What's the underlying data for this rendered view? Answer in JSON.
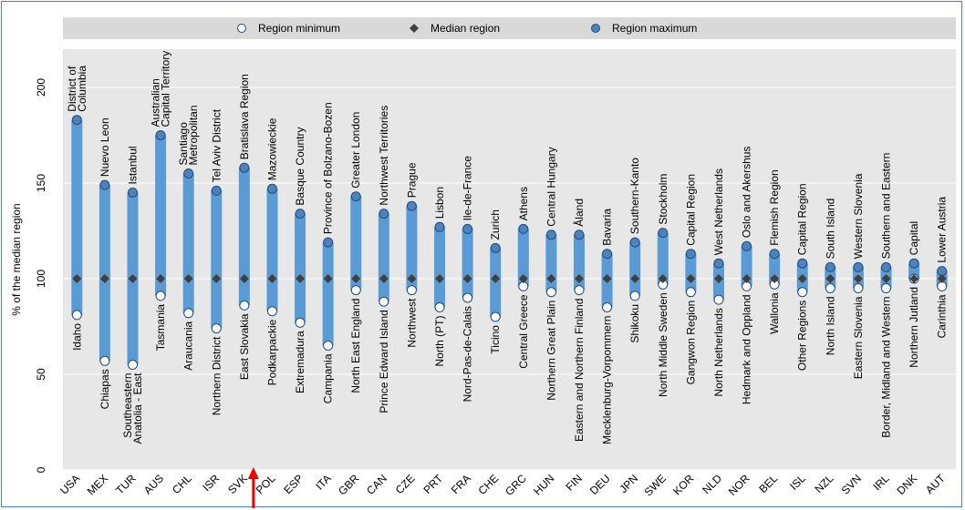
{
  "chart_data": {
    "type": "range",
    "ylabel": "% of the median region",
    "ylim": [
      0,
      220
    ],
    "yticks": [
      0,
      50,
      100,
      150,
      200
    ],
    "grid": true,
    "legend_position": "top",
    "legend": [
      {
        "key": "min",
        "label": "Region minimum",
        "marker": "open-circle"
      },
      {
        "key": "median",
        "label": "Median region",
        "marker": "diamond"
      },
      {
        "key": "max",
        "label": "Region maximum",
        "marker": "filled-circle"
      }
    ],
    "colors": {
      "bar": "#5b9bd5",
      "marker_fill": "#4f81bd",
      "marker_stroke": "#1f4e79",
      "median": "#404040",
      "plot_bg": "#e7e7e7",
      "legend_bg": "#d9d9d9",
      "grid": "#ffffff",
      "arrow": "#ee0000",
      "frame": "#4f81bd"
    },
    "arrow_category": "SVK",
    "categories": [
      {
        "code": "USA",
        "min": 81,
        "median": 100,
        "max": 183,
        "min_label": "Idaho",
        "max_label": "District of\nColumbia"
      },
      {
        "code": "MEX",
        "min": 57,
        "median": 100,
        "max": 149,
        "min_label": "Chiapas",
        "max_label": "Nuevo Leon"
      },
      {
        "code": "TUR",
        "min": 55,
        "median": 100,
        "max": 145,
        "min_label": "Southeastern\nAnatolia - East",
        "max_label": "Istanbul"
      },
      {
        "code": "AUS",
        "min": 91,
        "median": 100,
        "max": 175,
        "min_label": "Tasmania",
        "max_label": "Australian\nCapital Territory"
      },
      {
        "code": "CHL",
        "min": 82,
        "median": 100,
        "max": 155,
        "min_label": "Araucania",
        "max_label": "Santiago\nMetropolitan"
      },
      {
        "code": "ISR",
        "min": 74,
        "median": 100,
        "max": 146,
        "min_label": "Northern District",
        "max_label": "Tel Aviv District"
      },
      {
        "code": "SVK",
        "min": 86,
        "median": 100,
        "max": 158,
        "min_label": "East Slovakia",
        "max_label": "Bratislava Region"
      },
      {
        "code": "POL",
        "min": 83,
        "median": 100,
        "max": 147,
        "min_label": "Podkarpackie",
        "max_label": "Mazowieckie"
      },
      {
        "code": "ESP",
        "min": 77,
        "median": 100,
        "max": 134,
        "min_label": "Extremadura",
        "max_label": "Basque Country"
      },
      {
        "code": "ITA",
        "min": 65,
        "median": 100,
        "max": 119,
        "min_label": "Campania",
        "max_label": "Province of Bolzano-Bozen"
      },
      {
        "code": "GBR",
        "min": 94,
        "median": 100,
        "max": 143,
        "min_label": "North East England",
        "max_label": "Greater London"
      },
      {
        "code": "CAN",
        "min": 88,
        "median": 100,
        "max": 134,
        "min_label": "Prince Edward Island",
        "max_label": "Northwest Territories"
      },
      {
        "code": "CZE",
        "min": 94,
        "median": 100,
        "max": 138,
        "min_label": "Northwest",
        "max_label": "Prague"
      },
      {
        "code": "PRT",
        "min": 85,
        "median": 100,
        "max": 127,
        "min_label": "North (PT)",
        "max_label": "Lisbon"
      },
      {
        "code": "FRA",
        "min": 90,
        "median": 100,
        "max": 126,
        "min_label": "Nord-Pas-de-Calais",
        "max_label": "Ile-de-France"
      },
      {
        "code": "CHE",
        "min": 80,
        "median": 100,
        "max": 116,
        "min_label": "Ticino",
        "max_label": "Zurich"
      },
      {
        "code": "GRC",
        "min": 96,
        "median": 100,
        "max": 126,
        "min_label": "Central Greece",
        "max_label": "Athens"
      },
      {
        "code": "HUN",
        "min": 93,
        "median": 100,
        "max": 123,
        "min_label": "Northern Great Plain",
        "max_label": "Central Hungary"
      },
      {
        "code": "FIN",
        "min": 94,
        "median": 100,
        "max": 123,
        "min_label": "Eastern and Northern Finland",
        "max_label": "Åland"
      },
      {
        "code": "DEU",
        "min": 85,
        "median": 100,
        "max": 113,
        "min_label": "Mecklenburg-Vorpommern",
        "max_label": "Bavaria"
      },
      {
        "code": "JPN",
        "min": 91,
        "median": 100,
        "max": 119,
        "min_label": "Shikoku",
        "max_label": "Southern-Kanto"
      },
      {
        "code": "SWE",
        "min": 97,
        "median": 100,
        "max": 124,
        "min_label": "North Middle Sweden",
        "max_label": "Stockholm"
      },
      {
        "code": "KOR",
        "min": 93,
        "median": 100,
        "max": 113,
        "min_label": "Gangwon Region",
        "max_label": "Capital Region"
      },
      {
        "code": "NLD",
        "min": 89,
        "median": 100,
        "max": 108,
        "min_label": "North Netherlands",
        "max_label": "West Netherlands"
      },
      {
        "code": "NOR",
        "min": 96,
        "median": 100,
        "max": 117,
        "min_label": "Hedmark and Oppland",
        "max_label": "Oslo and Akershus"
      },
      {
        "code": "BEL",
        "min": 97,
        "median": 100,
        "max": 113,
        "min_label": "Wallonia",
        "max_label": "Flemish Region"
      },
      {
        "code": "ISL",
        "min": 93,
        "median": 100,
        "max": 108,
        "min_label": "Other Regions",
        "max_label": "Capital Region"
      },
      {
        "code": "NZL",
        "min": 95,
        "median": 100,
        "max": 106,
        "min_label": "North Island",
        "max_label": "South Island"
      },
      {
        "code": "SVN",
        "min": 95,
        "median": 100,
        "max": 106,
        "min_label": "Eastern Slovenia",
        "max_label": "Western Slovenia"
      },
      {
        "code": "IRL",
        "min": 95,
        "median": 100,
        "max": 106,
        "min_label": "Border, Midland and Western",
        "max_label": "Southern and Eastern"
      },
      {
        "code": "DNK",
        "min": 100,
        "median": 100,
        "max": 108,
        "min_label": "Northern Jutland",
        "max_label": "Capital"
      },
      {
        "code": "AUT",
        "min": 96,
        "median": 100,
        "max": 104,
        "min_label": "Carinthia",
        "max_label": "Lower Austria"
      }
    ]
  }
}
